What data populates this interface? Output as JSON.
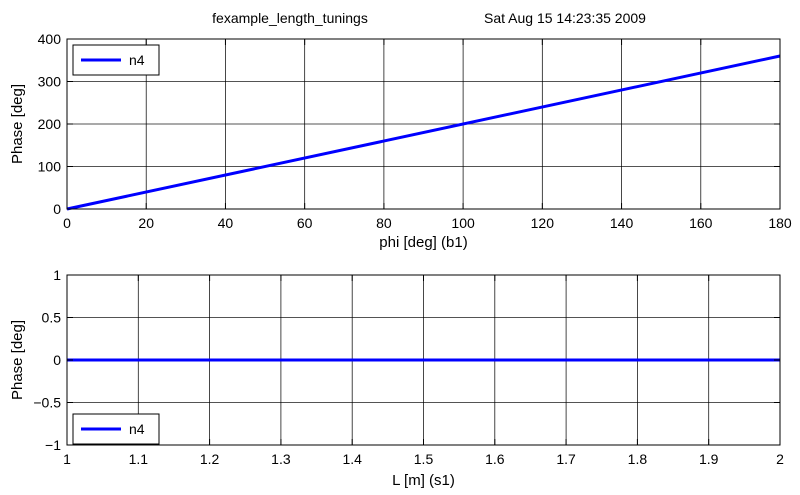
{
  "figure": {
    "title_left": "fexample_length_tunings",
    "title_right": "Sat Aug 15 14:23:35 2009"
  },
  "chart_data": [
    {
      "type": "line",
      "xlabel": "phi [deg] (b1)",
      "ylabel": "Phase [deg]",
      "xlim": [
        0,
        180
      ],
      "ylim": [
        0,
        400
      ],
      "xticks": [
        0,
        20,
        40,
        60,
        80,
        100,
        120,
        140,
        160,
        180
      ],
      "xtick_labels": [
        "0",
        "20",
        "40",
        "60",
        "80",
        "100",
        "120",
        "140",
        "160",
        "180"
      ],
      "yticks": [
        0,
        100,
        200,
        300,
        400
      ],
      "ytick_labels": [
        "0",
        "100",
        "200",
        "300",
        "400"
      ],
      "grid": true,
      "legend_position": "top-left",
      "series": [
        {
          "name": "n4",
          "color": "#0000ff",
          "x": [
            0,
            180
          ],
          "y": [
            0,
            360
          ]
        }
      ]
    },
    {
      "type": "line",
      "xlabel": "L [m] (s1)",
      "ylabel": "Phase [deg]",
      "xlim": [
        1,
        2
      ],
      "ylim": [
        -1,
        1
      ],
      "xticks": [
        1,
        1.1,
        1.2,
        1.3,
        1.4,
        1.5,
        1.6,
        1.7,
        1.8,
        1.9,
        2
      ],
      "xtick_labels": [
        "1",
        "1.1",
        "1.2",
        "1.3",
        "1.4",
        "1.5",
        "1.6",
        "1.7",
        "1.8",
        "1.9",
        "2"
      ],
      "yticks": [
        -1,
        -0.5,
        0,
        0.5,
        1
      ],
      "ytick_labels": [
        "−1",
        "−0.5",
        "0",
        "0.5",
        "1"
      ],
      "grid": true,
      "legend_position": "bottom-left",
      "series": [
        {
          "name": "n4",
          "color": "#0000ff",
          "x": [
            1,
            2
          ],
          "y": [
            0,
            0
          ]
        }
      ]
    }
  ]
}
